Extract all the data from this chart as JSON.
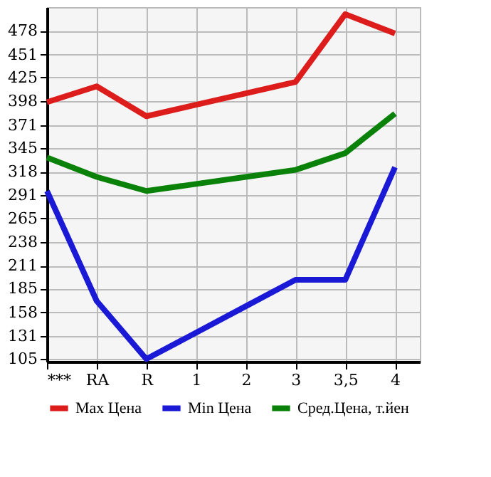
{
  "chart_data": {
    "type": "line",
    "categories": [
      "***",
      "RA",
      "R",
      "1",
      "2",
      "3",
      "3,5",
      "4"
    ],
    "series": [
      {
        "name": "Max Цена",
        "color": "#dd1c1c",
        "values": [
          397,
          415,
          381,
          394,
          407,
          420,
          497,
          475
        ]
      },
      {
        "name": "Min Цена",
        "color": "#1a1ad6",
        "values": [
          296,
          171,
          105,
          135,
          165,
          195,
          195,
          323
        ]
      },
      {
        "name": "Сред.Цена, т.йен",
        "color": "#0a820a",
        "values": [
          334,
          312,
          296,
          304,
          312,
          320,
          339,
          384
        ]
      }
    ],
    "ylim": [
      102,
      505
    ],
    "yticks": [
      105,
      131,
      158,
      185,
      211,
      238,
      265,
      291,
      318,
      345,
      371,
      398,
      425,
      451,
      478
    ],
    "grid": true,
    "legend": "bottom",
    "marker": "none",
    "line_style": "solid"
  }
}
